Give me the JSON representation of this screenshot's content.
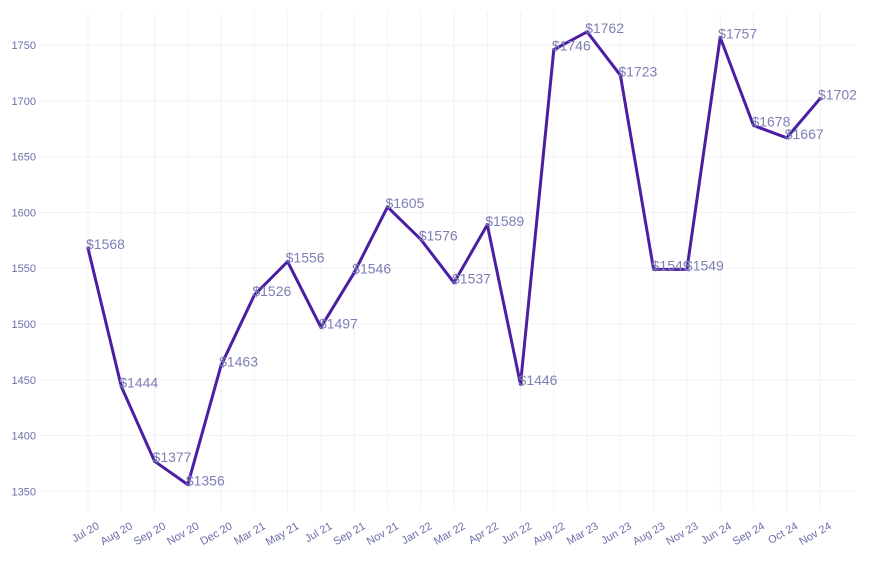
{
  "chart_data": {
    "type": "line",
    "title": "",
    "xlabel": "",
    "ylabel": "",
    "categories": [
      "Jul 20",
      "Aug 20",
      "Sep 20",
      "Nov 20",
      "Dec 20",
      "Mar 21",
      "May 21",
      "Jul 21",
      "Sep 21",
      "Nov 21",
      "Jan 22",
      "Mar 22",
      "Apr 22",
      "Jun 22",
      "Aug 22",
      "Mar 23",
      "Jun 23",
      "Aug 23",
      "Nov 23",
      "Jun 24",
      "Sep 24",
      "Oct 24",
      "Nov 24"
    ],
    "series": [
      {
        "values": [
          1568,
          1444,
          1377,
          1356,
          1463,
          1526,
          1556,
          1497,
          1546,
          1605,
          1576,
          1537,
          1589,
          1446,
          1746,
          1762,
          1723,
          1549,
          1549,
          1757,
          1678,
          1667,
          1702
        ],
        "labels": [
          "$1568",
          "$1444",
          "$1377",
          "$1356",
          "$1463",
          "$1526",
          "$1556",
          "$1497",
          "$1546",
          "$1605",
          "$1576",
          "$1537",
          "$1589",
          "$1446",
          "$1746",
          "$1762",
          "$1723",
          "$1549",
          "$1549",
          "$1757",
          "$1678",
          "$1667",
          "$1702"
        ]
      }
    ],
    "yticks": [
      "1350",
      "1400",
      "1450",
      "1500",
      "1550",
      "1600",
      "1650",
      "1700",
      "1750"
    ],
    "ylim": [
      1335,
      1778
    ],
    "grid": true,
    "legend": "none",
    "colors": {
      "line": "#4b1fa3",
      "labels": "#7d7fb5",
      "ticks": "#6b6fa8",
      "grid": "#f2f2f7"
    }
  }
}
